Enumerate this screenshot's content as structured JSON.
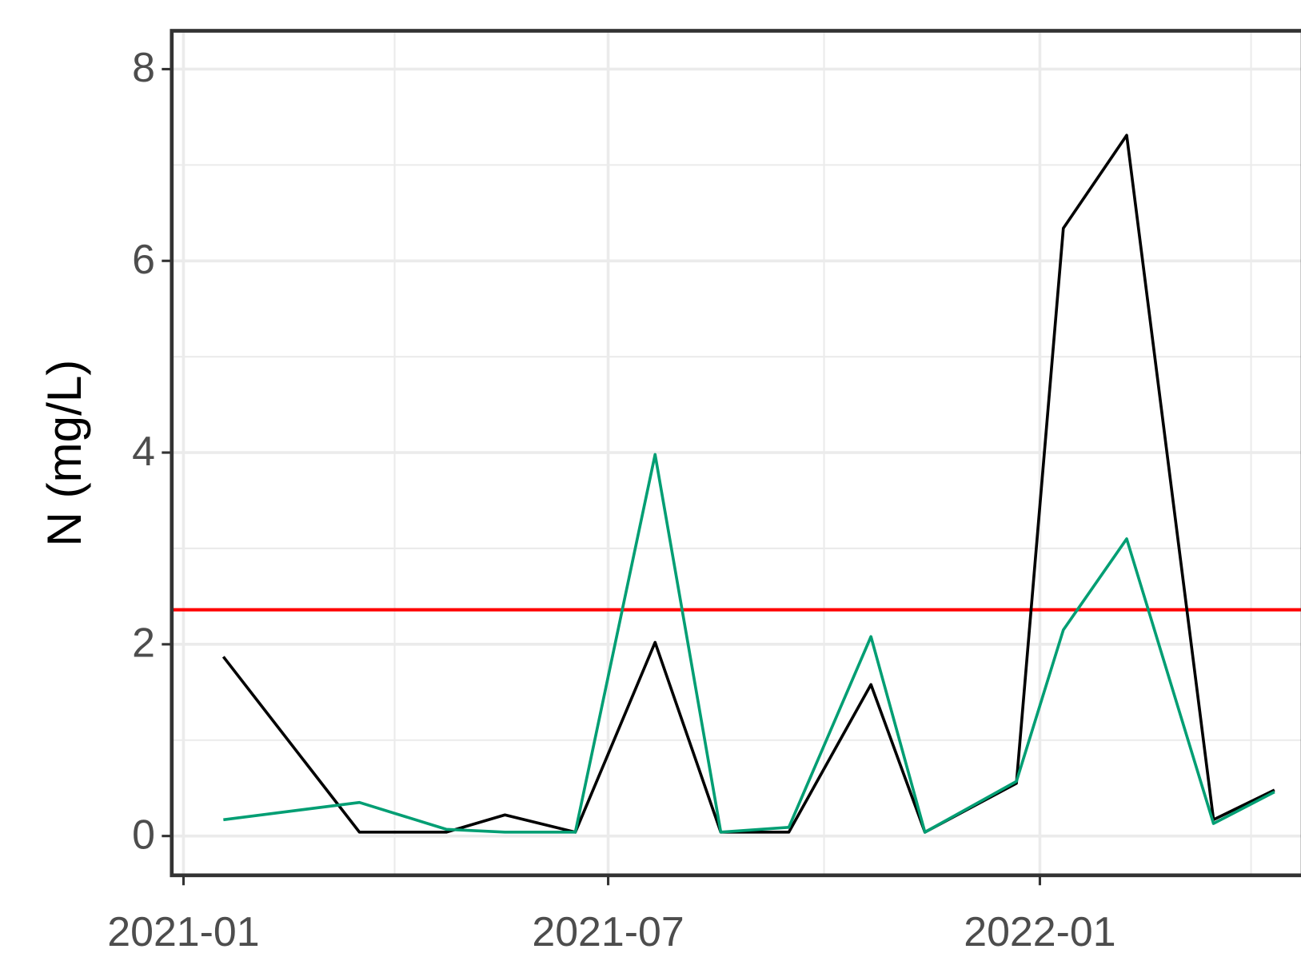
{
  "chart_data": {
    "type": "line",
    "y_label": "N (mg/L)",
    "x": [
      "2021-01-18",
      "2021-03-17",
      "2021-04-23",
      "2021-05-18",
      "2021-06-17",
      "2021-07-21",
      "2021-08-18",
      "2021-09-16",
      "2021-10-21",
      "2021-11-13",
      "2021-12-22",
      "2022-01-11",
      "2022-02-07",
      "2022-03-16",
      "2022-04-11"
    ],
    "series": [
      {
        "color": "#000000",
        "values": [
          1.87,
          0.04,
          0.04,
          0.22,
          0.04,
          2.02,
          0.04,
          0.04,
          1.58,
          0.04,
          0.55,
          6.34,
          7.31,
          0.17,
          0.48
        ]
      },
      {
        "color": "#009e73",
        "values": [
          0.17,
          0.35,
          0.07,
          0.04,
          0.04,
          3.98,
          0.04,
          0.09,
          2.08,
          0.04,
          0.57,
          2.15,
          3.1,
          0.13,
          0.46
        ]
      }
    ],
    "hline": {
      "value": 2.36,
      "color": "#ff0000"
    },
    "xlim": [
      "2020-12-27",
      "2022-04-23"
    ],
    "xticks": [
      "2021-01",
      "2021-07",
      "2022-01"
    ],
    "xminorticks": [
      "2021-04",
      "2021-10",
      "2022-04"
    ],
    "ylim": [
      -0.41,
      8.4
    ],
    "yticks": [
      0,
      2,
      4,
      6,
      8
    ],
    "yminorticks": [
      1,
      3,
      5,
      7
    ],
    "grid": true
  }
}
